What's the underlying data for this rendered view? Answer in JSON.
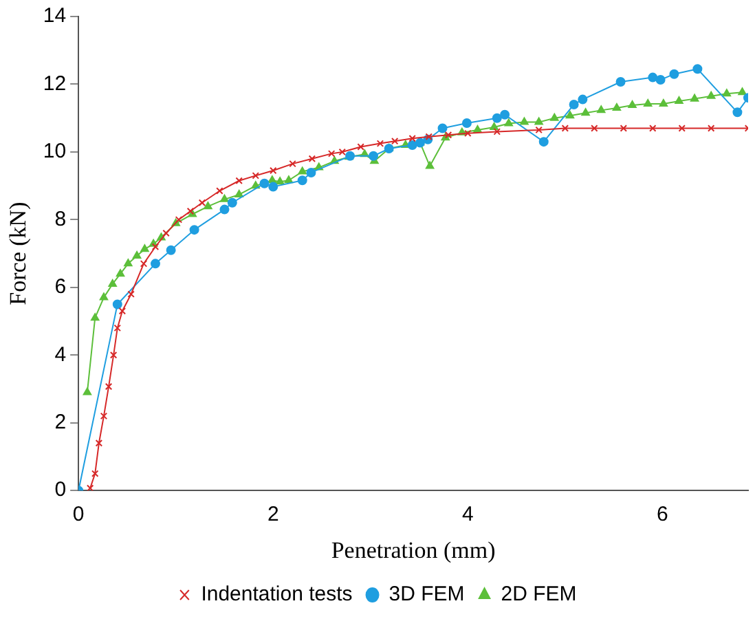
{
  "chart_data": {
    "type": "line",
    "xlabel": "Penetration (mm)",
    "ylabel": "Force (kN)",
    "xlim": [
      0,
      6.88
    ],
    "xticks": [
      0,
      2,
      4,
      6
    ],
    "ylim": [
      0,
      14
    ],
    "yticks": [
      0,
      2,
      4,
      6,
      8,
      10,
      12,
      14
    ],
    "grid": false,
    "legend": "bottom",
    "series": [
      {
        "name": "Indentation tests",
        "color": "#d62828",
        "marker": "cross",
        "x": [
          0.12,
          0.17,
          0.21,
          0.26,
          0.31,
          0.36,
          0.4,
          0.45,
          0.54,
          0.67,
          0.79,
          0.9,
          1.03,
          1.15,
          1.27,
          1.45,
          1.65,
          1.82,
          2.0,
          2.2,
          2.4,
          2.6,
          2.71,
          2.9,
          3.1,
          3.25,
          3.43,
          3.6,
          3.8,
          4.0,
          4.3,
          4.73,
          5.0,
          5.3,
          5.6,
          5.9,
          6.2,
          6.5,
          6.88
        ],
        "values": [
          0.07,
          0.5,
          1.4,
          2.2,
          3.07,
          4.0,
          4.8,
          5.3,
          5.8,
          6.7,
          7.2,
          7.6,
          8.0,
          8.25,
          8.5,
          8.85,
          9.15,
          9.3,
          9.45,
          9.65,
          9.8,
          9.95,
          10.0,
          10.15,
          10.25,
          10.32,
          10.4,
          10.45,
          10.5,
          10.55,
          10.6,
          10.65,
          10.7,
          10.7,
          10.7,
          10.7,
          10.7,
          10.7,
          10.7
        ]
      },
      {
        "name": "3D FEM",
        "color": "#1f9ee0",
        "marker": "circle",
        "x": [
          0,
          0.4,
          0.79,
          0.95,
          1.19,
          1.5,
          1.58,
          1.91,
          2.0,
          2.3,
          2.39,
          2.79,
          3.03,
          3.19,
          3.43,
          3.51,
          3.59,
          3.74,
          3.99,
          4.3,
          4.38,
          4.78,
          5.09,
          5.18,
          5.57,
          5.9,
          5.98,
          6.12,
          6.36,
          6.77,
          6.88
        ],
        "values": [
          0,
          5.5,
          6.7,
          7.1,
          7.7,
          8.3,
          8.5,
          9.07,
          8.97,
          9.16,
          9.39,
          9.88,
          9.88,
          10.1,
          10.2,
          10.27,
          10.37,
          10.7,
          10.85,
          11.0,
          11.1,
          10.3,
          11.4,
          11.55,
          12.07,
          12.2,
          12.13,
          12.3,
          12.45,
          11.17,
          11.6
        ]
      },
      {
        "name": "2D FEM",
        "color": "#5cbf3a",
        "marker": "triangle",
        "x": [
          0.09,
          0.17,
          0.26,
          0.35,
          0.43,
          0.51,
          0.6,
          0.68,
          0.77,
          0.85,
          1.0,
          1.17,
          1.33,
          1.5,
          1.65,
          1.82,
          1.99,
          2.07,
          2.16,
          2.3,
          2.47,
          2.63,
          2.78,
          2.94,
          3.04,
          3.19,
          3.36,
          3.51,
          3.61,
          3.77,
          3.94,
          4.1,
          4.27,
          4.42,
          4.58,
          4.73,
          4.89,
          5.05,
          5.21,
          5.37,
          5.53,
          5.69,
          5.85,
          6.01,
          6.17,
          6.33,
          6.5,
          6.66,
          6.82
        ],
        "values": [
          2.9,
          5.1,
          5.7,
          6.1,
          6.4,
          6.7,
          6.93,
          7.13,
          7.28,
          7.47,
          7.89,
          8.16,
          8.39,
          8.6,
          8.74,
          9.0,
          9.16,
          9.12,
          9.16,
          9.42,
          9.54,
          9.73,
          9.85,
          9.93,
          9.73,
          10.1,
          10.2,
          10.27,
          9.58,
          10.42,
          10.57,
          10.65,
          10.73,
          10.84,
          10.88,
          10.88,
          11.0,
          11.07,
          11.15,
          11.23,
          11.3,
          11.38,
          11.42,
          11.42,
          11.5,
          11.57,
          11.65,
          11.72,
          11.76
        ]
      }
    ]
  }
}
